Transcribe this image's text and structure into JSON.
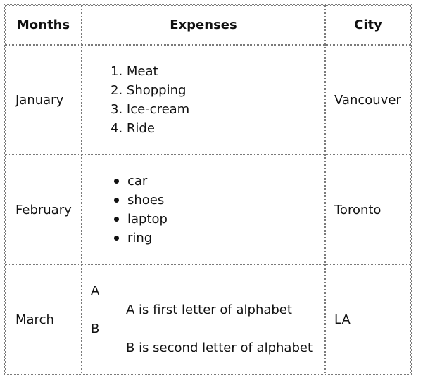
{
  "headers": [
    "Months",
    "Expenses",
    "City"
  ],
  "rows": [
    {
      "month": "January",
      "expenses_ordered": [
        "Meat",
        "Shopping",
        "Ice-cream",
        "Ride"
      ],
      "city": "Vancouver"
    },
    {
      "month": "February",
      "expenses_bulleted": [
        "car",
        "shoes",
        "laptop",
        "ring"
      ],
      "city": "Toronto"
    },
    {
      "month": "March",
      "expenses_definitions": [
        {
          "term": "A",
          "definition": "A is first letter of alphabet"
        },
        {
          "term": "B",
          "definition": "B is second letter of alphabet"
        }
      ],
      "city": "LA"
    }
  ]
}
